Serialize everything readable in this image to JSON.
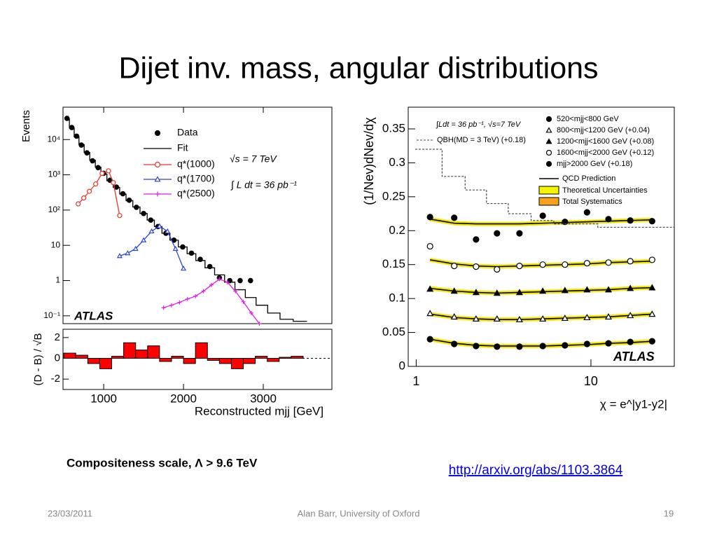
{
  "title": "Dijet inv. mass, angular distributions",
  "caption": "Compositeness scale, Λ > 9.6 TeV",
  "link": "http://arxiv.org/abs/1103.3864",
  "footer": {
    "date": "23/03/2011",
    "author": "Alan Barr, University of Oxford",
    "page": "19"
  },
  "chart_data": [
    {
      "type": "line",
      "y_label": "Events",
      "log_y": true,
      "xlim": [
        490,
        3860
      ],
      "ylim": [
        0.06,
        83000
      ],
      "yticks": [
        {
          "value": 0.1,
          "label": "10⁻¹"
        },
        1,
        10,
        {
          "value": 100,
          "label": "10²"
        },
        {
          "value": 1000,
          "label": "10³"
        },
        {
          "value": 10000,
          "label": "10⁴"
        }
      ],
      "annotations": [
        "√s = 7 TeV",
        "∫ L dt = 36 pb⁻¹",
        "ATLAS"
      ],
      "series": [
        {
          "name": "Data",
          "style": "points",
          "color": "#000000",
          "x": [
            540,
            600,
            660,
            720,
            790,
            860,
            930,
            1000,
            1080,
            1160,
            1240,
            1320,
            1410,
            1500,
            1590,
            1680,
            1780,
            1880,
            1990,
            2100,
            2210,
            2330,
            2450,
            2580,
            2710,
            2840
          ],
          "values": [
            40000,
            22000,
            12500,
            7000,
            4200,
            2500,
            1600,
            1100,
            700,
            450,
            290,
            190,
            120,
            80,
            52,
            34,
            22,
            14,
            9,
            6,
            4,
            2.5,
            1.2,
            1,
            1,
            1
          ]
        },
        {
          "name": "Fit",
          "style": "step",
          "color": "#000000",
          "x": [
            540,
            600,
            660,
            720,
            790,
            860,
            930,
            1000,
            1080,
            1160,
            1240,
            1320,
            1410,
            1500,
            1590,
            1680,
            1780,
            1880,
            1990,
            2100,
            2210,
            2330,
            2450,
            2580,
            2710,
            2840,
            2980,
            3130,
            3290,
            3460
          ],
          "values": [
            38000,
            21000,
            12000,
            7200,
            4300,
            2600,
            1650,
            1050,
            680,
            440,
            285,
            185,
            122,
            80,
            52,
            34,
            22,
            14,
            9,
            5.8,
            3.7,
            2.3,
            1.45,
            0.9,
            0.55,
            0.33,
            0.2,
            0.12,
            0.08,
            0.07
          ]
        },
        {
          "name": "q*(1000)",
          "style": "line",
          "marker": "circle",
          "color": "#e8352b",
          "x": [
            680,
            750,
            820,
            900,
            980,
            1060,
            1120,
            1200
          ],
          "values": [
            150,
            220,
            340,
            550,
            1100,
            1300,
            600,
            70
          ]
        },
        {
          "name": "q*(1700)",
          "style": "line",
          "marker": "triangle",
          "color": "#2a45d6",
          "x": [
            1200,
            1300,
            1400,
            1500,
            1600,
            1700,
            1800,
            1900,
            2000
          ],
          "values": [
            5,
            6,
            8,
            14,
            25,
            35,
            25,
            8,
            2.2
          ]
        },
        {
          "name": "q*(2500)",
          "style": "line",
          "marker": "cross",
          "color": "#e020e0",
          "x": [
            1750,
            1850,
            1950,
            2050,
            2150,
            2250,
            2350,
            2450,
            2550,
            2650,
            2750,
            2850,
            2950
          ],
          "values": [
            0.17,
            0.2,
            0.24,
            0.3,
            0.36,
            0.5,
            0.75,
            1.1,
            0.9,
            0.5,
            0.25,
            0.12,
            0.06
          ]
        }
      ]
    },
    {
      "type": "histogram",
      "x_label": "Reconstructed mjj [GeV]",
      "y_label": "(D - B) / √B",
      "color": "#ff0000",
      "xlim": [
        490,
        3860
      ],
      "ylim": [
        -3,
        2.8
      ],
      "xticks": [
        1000,
        2000,
        3000
      ],
      "yticks": [
        -2,
        0,
        2
      ],
      "bins": [
        500,
        650,
        800,
        950,
        1100,
        1250,
        1400,
        1550,
        1700,
        1850,
        2000,
        2150,
        2300,
        2450,
        2600,
        2750,
        2900,
        3050,
        3200,
        3350,
        3500
      ],
      "values": [
        0.5,
        0.3,
        -0.5,
        -1,
        0.2,
        1.5,
        0.8,
        1.2,
        -0.3,
        0.2,
        -0.5,
        1.5,
        -0.2,
        -0.5,
        -1,
        -0.5,
        0.2,
        -0.3,
        0.1,
        0.2
      ]
    },
    {
      "type": "scatter",
      "x_label": "χ = e^|y1-y2|",
      "y_label": "(1/Nev)dNev/dχ",
      "log_x": true,
      "xlim": [
        0.9,
        30
      ],
      "ylim": [
        0,
        0.382
      ],
      "xticks": [
        1,
        10
      ],
      "yticks": [
        0,
        0.05,
        0.1,
        0.15,
        0.2,
        0.25,
        0.3,
        0.35
      ],
      "annotations": [
        "∫Ldt = 36 pb⁻¹, √s=7 TeV",
        "ATLAS"
      ],
      "legend_extra": [
        "QCD Prediction",
        "Theoretical Uncertainties",
        "Total Systematics"
      ],
      "x": [
        1.2,
        1.65,
        2.2,
        2.9,
        3.9,
        5.3,
        7.1,
        9.5,
        12.6,
        16.8,
        22.4
      ],
      "series": [
        {
          "name": "520<mjj<800 GeV",
          "marker": "circle",
          "filled": true,
          "values": [
            0.04,
            0.033,
            0.03,
            0.029,
            0.029,
            0.03,
            0.031,
            0.033,
            0.034,
            0.036,
            0.037
          ],
          "prediction": [
            0.04,
            0.034,
            0.031,
            0.03,
            0.03,
            0.03,
            0.031,
            0.032,
            0.034,
            0.035,
            0.037
          ]
        },
        {
          "name": "800<mjj<1200 GeV (+0.04)",
          "marker": "triangle",
          "filled": false,
          "values": [
            0.078,
            0.073,
            0.07,
            0.07,
            0.069,
            0.07,
            0.071,
            0.072,
            0.073,
            0.075,
            0.077
          ],
          "prediction": [
            0.077,
            0.072,
            0.07,
            0.069,
            0.069,
            0.07,
            0.071,
            0.072,
            0.073,
            0.075,
            0.077
          ]
        },
        {
          "name": "1200<mjj<1600 GeV (+0.08)",
          "marker": "triangle",
          "filled": true,
          "values": [
            0.114,
            0.111,
            0.109,
            0.108,
            0.109,
            0.111,
            0.112,
            0.113,
            0.113,
            0.115,
            0.116
          ],
          "prediction": [
            0.115,
            0.111,
            0.109,
            0.108,
            0.109,
            0.11,
            0.111,
            0.112,
            0.113,
            0.115,
            0.116
          ]
        },
        {
          "name": "1600<mjj<2000 GeV (+0.12)",
          "marker": "circle",
          "filled": false,
          "values": [
            0.177,
            0.148,
            0.147,
            0.143,
            0.148,
            0.15,
            0.15,
            0.152,
            0.153,
            0.155,
            0.157
          ],
          "prediction": [
            0.157,
            0.151,
            0.148,
            0.147,
            0.148,
            0.149,
            0.15,
            0.151,
            0.153,
            0.154,
            0.155
          ]
        },
        {
          "name": "mjj>2000 GeV (+0.18)",
          "marker": "circle",
          "filled": true,
          "values": [
            0.22,
            0.219,
            0.187,
            0.196,
            0.196,
            0.222,
            0.213,
            0.227,
            0.217,
            0.215,
            0.214
          ],
          "prediction": [
            0.217,
            0.211,
            0.21,
            0.21,
            0.21,
            0.211,
            0.212,
            0.213,
            0.214,
            0.215,
            0.216
          ]
        },
        {
          "name": "QBH(MD = 3 TeV) (+0.18)",
          "style": "dashed-step",
          "values": [
            0.32,
            0.28,
            0.26,
            0.24,
            0.225,
            0.215,
            0.21,
            0.21,
            0.205,
            0.205,
            0.205
          ]
        }
      ]
    }
  ]
}
